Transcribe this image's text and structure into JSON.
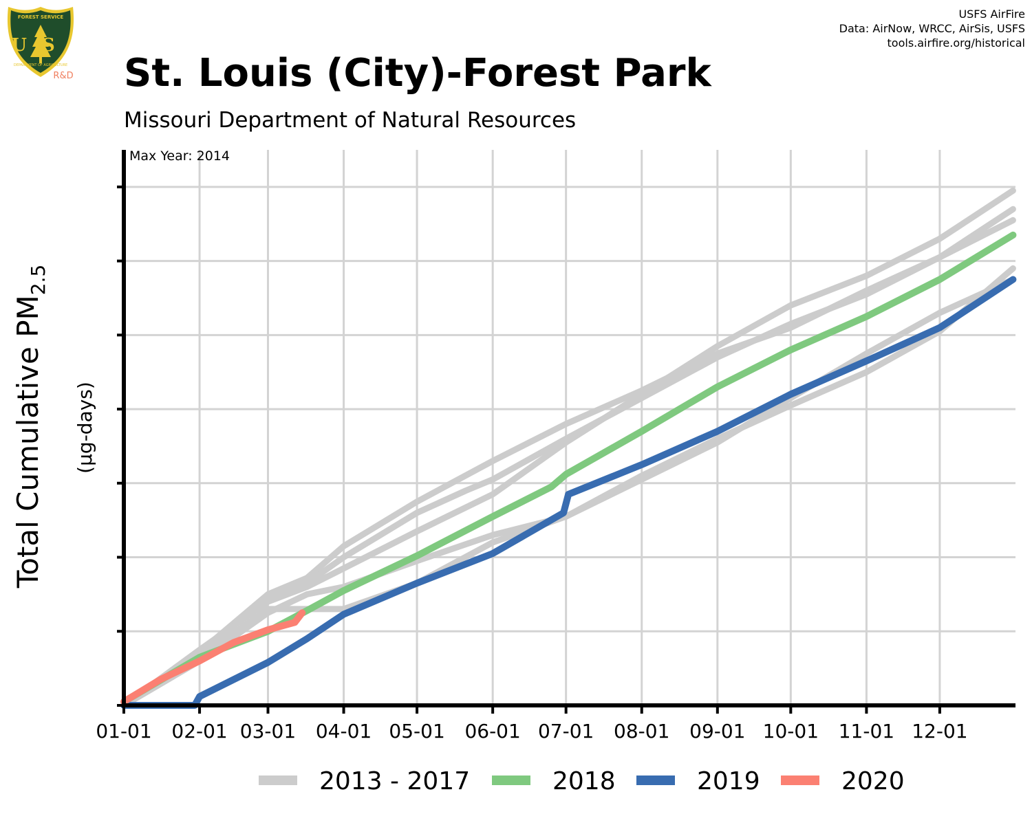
{
  "header": {
    "title": "St. Louis (City)-Forest Park",
    "subtitle": "Missouri Department of Natural Resources",
    "credits": [
      "USFS AirFire",
      "Data: AirNow, WRCC, AirSis, USFS",
      "tools.airfire.org/historical"
    ],
    "logo_text": {
      "top": "FOREST SERVICE",
      "letters": "USFS",
      "bottom": "DEPARTMENT OF AGRICULTURE",
      "tag": "R&D"
    }
  },
  "colors": {
    "history": "#cccccc",
    "y2018": "#7fc97f",
    "y2019": "#386cb0",
    "y2020": "#fb8072",
    "logo_green": "#1f4d2b",
    "logo_gold": "#e8c72f"
  },
  "chart_data": {
    "type": "line",
    "ylabel": "Total Cumulative PM2.5",
    "ylabel_main": "Total Cumulative PM",
    "ylabel_sub": "2.5",
    "yunits": "(µg-days)",
    "annotation": "Max Year: 2014",
    "x_tick_labels": [
      "01-01",
      "02-01",
      "03-01",
      "04-01",
      "05-01",
      "06-01",
      "07-01",
      "08-01",
      "09-01",
      "10-01",
      "11-01",
      "12-01"
    ],
    "x_tick_days": [
      0,
      31,
      59,
      90,
      120,
      151,
      181,
      212,
      243,
      273,
      304,
      334
    ],
    "xlim": [
      0,
      365
    ],
    "ylim": [
      0,
      7.5
    ],
    "grid": true,
    "legend_position": "bottom",
    "legend": [
      "2013 - 2017",
      "2018",
      "2019",
      "2020"
    ],
    "series": [
      {
        "name": "2013 - 2017",
        "days": [
          0,
          31,
          59,
          75,
          90,
          120,
          151,
          181,
          212,
          243,
          273,
          304,
          334,
          364
        ],
        "values": [
          0,
          0.72,
          1.5,
          1.72,
          2.15,
          2.75,
          3.3,
          3.8,
          4.25,
          4.75,
          5.1,
          5.6,
          6.05,
          6.55
        ]
      },
      {
        "name": "2013 - 2017",
        "days": [
          0,
          31,
          59,
          75,
          90,
          120,
          140,
          151,
          181,
          212,
          243,
          273,
          304,
          334,
          364
        ],
        "values": [
          0,
          0.7,
          1.45,
          1.65,
          2.0,
          2.6,
          2.9,
          3.05,
          3.6,
          4.15,
          4.7,
          5.15,
          5.55,
          6.05,
          6.7
        ]
      },
      {
        "name": "2013 - 2017",
        "days": [
          0,
          31,
          59,
          75,
          90,
          120,
          151,
          181,
          212,
          243,
          273,
          304,
          334,
          364
        ],
        "values": [
          0,
          0.75,
          1.4,
          1.6,
          1.85,
          2.35,
          2.85,
          3.55,
          4.2,
          4.85,
          5.4,
          5.8,
          6.3,
          6.95
        ]
      },
      {
        "name": "2013 - 2017",
        "days": [
          0,
          31,
          59,
          75,
          90,
          120,
          151,
          181,
          212,
          243,
          273,
          304,
          334,
          364
        ],
        "values": [
          0,
          0.65,
          1.3,
          1.3,
          1.3,
          1.65,
          2.2,
          2.55,
          3.05,
          3.55,
          4.15,
          4.75,
          5.3,
          5.75
        ]
      },
      {
        "name": "2013 - 2017",
        "days": [
          0,
          31,
          59,
          75,
          90,
          120,
          151,
          181,
          212,
          243,
          273,
          304,
          334,
          364
        ],
        "values": [
          0,
          0.6,
          1.25,
          1.5,
          1.6,
          1.95,
          2.3,
          2.55,
          3.1,
          3.6,
          4.05,
          4.5,
          5.05,
          5.9
        ]
      },
      {
        "name": "2018",
        "days": [
          0,
          31,
          59,
          75,
          90,
          120,
          151,
          175,
          181,
          212,
          243,
          273,
          304,
          334,
          364
        ],
        "values": [
          0.05,
          0.65,
          1.0,
          1.28,
          1.55,
          2.02,
          2.55,
          2.95,
          3.12,
          3.7,
          4.3,
          4.8,
          5.25,
          5.75,
          6.35
        ]
      },
      {
        "name": "2019",
        "days": [
          0,
          29,
          31,
          59,
          75,
          90,
          120,
          151,
          180,
          182,
          212,
          243,
          273,
          304,
          334,
          364
        ],
        "values": [
          0,
          0,
          0.12,
          0.58,
          0.9,
          1.23,
          1.65,
          2.05,
          2.6,
          2.85,
          3.25,
          3.7,
          4.2,
          4.65,
          5.1,
          5.75
        ]
      },
      {
        "name": "2020",
        "days": [
          0,
          15,
          31,
          45,
          59,
          70,
          73
        ],
        "values": [
          0.05,
          0.35,
          0.6,
          0.85,
          1.02,
          1.12,
          1.25
        ]
      }
    ]
  }
}
